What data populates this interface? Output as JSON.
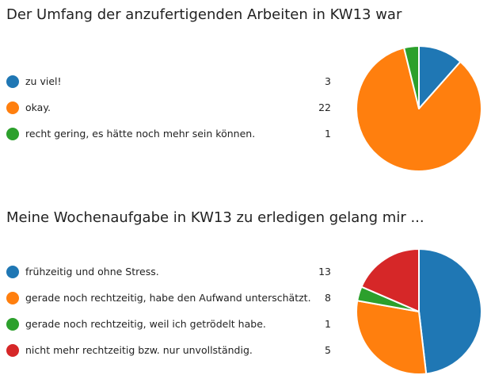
{
  "chart_data": [
    {
      "type": "pie",
      "title": "Der Umfang der anzufertigenden Arbeiten in KW13 war",
      "categories": [
        "zu viel!",
        "okay.",
        "recht gering, es hätte noch mehr sein können."
      ],
      "values": [
        3,
        22,
        1
      ],
      "colors": [
        "#1f77b4",
        "#ff7f0e",
        "#2ca02c"
      ],
      "legend": "left"
    },
    {
      "type": "pie",
      "title": "Meine Wochenaufgabe in KW13 zu erledigen gelang mir ...",
      "categories": [
        "frühzeitig und ohne Stress.",
        "gerade noch rechtzeitig, habe den Aufwand unterschätzt.",
        "gerade noch rechtzeitig, weil ich getrödelt habe.",
        "nicht mehr rechtzeitig bzw. nur unvollständig."
      ],
      "values": [
        13,
        8,
        1,
        5
      ],
      "colors": [
        "#1f77b4",
        "#ff7f0e",
        "#2ca02c",
        "#d62728"
      ],
      "legend": "left"
    }
  ]
}
